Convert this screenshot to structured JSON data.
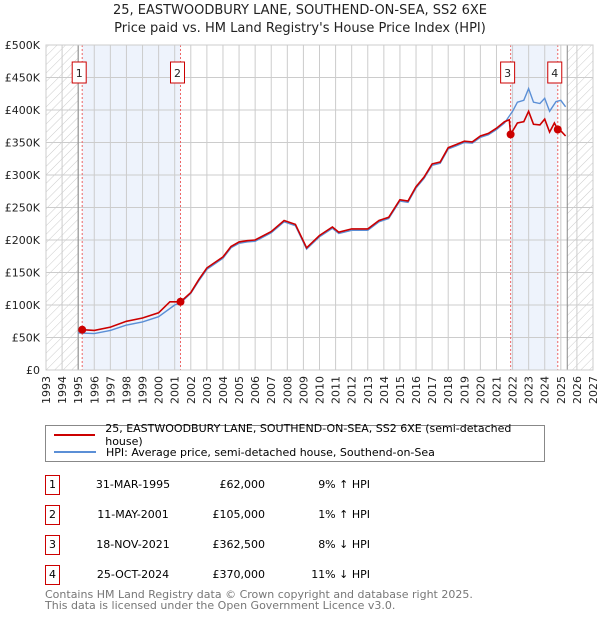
{
  "title_line1": "25, EASTWOODBURY LANE, SOUTHEND-ON-SEA, SS2 6XE",
  "title_line2": "Price paid vs. HM Land Registry's House Price Index (HPI)",
  "colors": {
    "property": "#cc0000",
    "hpi": "#5b8fd6",
    "band": "#eef3fc"
  },
  "chart_data": {
    "type": "line",
    "xlim": [
      1993,
      2027
    ],
    "ylim": [
      0,
      500000
    ],
    "x_ticks": [
      "1993",
      "1994",
      "1995",
      "1996",
      "1997",
      "1998",
      "1999",
      "2000",
      "2001",
      "2002",
      "2003",
      "2004",
      "2005",
      "2006",
      "2007",
      "2008",
      "2009",
      "2010",
      "2011",
      "2012",
      "2013",
      "2014",
      "2015",
      "2016",
      "2017",
      "2018",
      "2019",
      "2020",
      "2021",
      "2022",
      "2023",
      "2024",
      "2025",
      "2026",
      "2027"
    ],
    "y_ticks": [
      {
        "v": 0,
        "label": "£0"
      },
      {
        "v": 50000,
        "label": "£50K"
      },
      {
        "v": 100000,
        "label": "£100K"
      },
      {
        "v": 150000,
        "label": "£150K"
      },
      {
        "v": 200000,
        "label": "£200K"
      },
      {
        "v": 250000,
        "label": "£250K"
      },
      {
        "v": 300000,
        "label": "£300K"
      },
      {
        "v": 350000,
        "label": "£350K"
      },
      {
        "v": 400000,
        "label": "£400K"
      },
      {
        "v": 450000,
        "label": "£450K"
      },
      {
        "v": 500000,
        "label": "£500K"
      }
    ],
    "data_range": [
      1995.0,
      2025.4
    ],
    "series": [
      {
        "name": "25, EASTWOODBURY LANE, SOUTHEND-ON-SEA, SS2 6XE (semi-detached house)",
        "color": "#cc0000",
        "x": [
          1995.25,
          1996,
          1997,
          1998,
          1999,
          2000,
          2000.7,
          2001.36,
          2002,
          2002.5,
          2003,
          2004,
          2004.5,
          2005,
          2005.5,
          2006,
          2007,
          2007.8,
          2008.5,
          2009.2,
          2010,
          2010.8,
          2011.2,
          2012,
          2013,
          2013.7,
          2014.3,
          2015,
          2015.5,
          2016,
          2016.5,
          2017,
          2017.5,
          2018,
          2018.5,
          2019,
          2019.5,
          2020,
          2020.5,
          2021,
          2021.5,
          2021.8,
          2021.88,
          2022.3,
          2022.7,
          2023,
          2023.3,
          2023.7,
          2024,
          2024.3,
          2024.6,
          2024.81,
          2025,
          2025.3
        ],
        "y": [
          62000,
          61000,
          66000,
          75000,
          80000,
          88000,
          105000,
          105000,
          119000,
          139000,
          157000,
          174000,
          190000,
          197000,
          199000,
          200000,
          213000,
          230000,
          224000,
          188000,
          207000,
          220000,
          212000,
          217000,
          217000,
          230000,
          235000,
          262000,
          260000,
          282000,
          297000,
          317000,
          320000,
          342000,
          347000,
          352000,
          351000,
          360000,
          364000,
          372000,
          382000,
          385000,
          362500,
          380000,
          382000,
          398000,
          378000,
          377000,
          386000,
          366000,
          380000,
          370000,
          368000,
          360000
        ]
      },
      {
        "name": "HPI: Average price, semi-detached house, Southend-on-Sea",
        "color": "#5b8fd6",
        "x": [
          1995.0,
          1996,
          1997,
          1998,
          1999,
          2000,
          2001,
          2001.4,
          2002,
          2002.5,
          2003,
          2004,
          2004.5,
          2005,
          2005.5,
          2006,
          2007,
          2007.8,
          2008.5,
          2009.2,
          2010,
          2010.8,
          2011.2,
          2012,
          2013,
          2013.7,
          2014.3,
          2015,
          2015.5,
          2016,
          2016.5,
          2017,
          2017.5,
          2018,
          2018.5,
          2019,
          2019.5,
          2020,
          2020.5,
          2021,
          2021.5,
          2022,
          2022.3,
          2022.7,
          2023,
          2023.3,
          2023.7,
          2024,
          2024.3,
          2024.7,
          2025,
          2025.3
        ],
        "y": [
          57000,
          56000,
          61000,
          69000,
          74000,
          82000,
          100000,
          104000,
          118000,
          137000,
          155000,
          172000,
          188000,
          195000,
          197000,
          198000,
          211000,
          228000,
          222000,
          186000,
          205000,
          218000,
          210000,
          215000,
          215000,
          228000,
          233000,
          260000,
          258000,
          280000,
          295000,
          315000,
          318000,
          340000,
          345000,
          350000,
          349000,
          358000,
          362000,
          370000,
          380000,
          398000,
          412000,
          415000,
          433000,
          412000,
          410000,
          418000,
          398000,
          413000,
          415000,
          405000
        ]
      }
    ],
    "sales": [
      {
        "n": "1",
        "x": 1995.25,
        "y": 62000
      },
      {
        "n": "2",
        "x": 2001.36,
        "y": 105000
      },
      {
        "n": "3",
        "x": 2021.88,
        "y": 362500
      },
      {
        "n": "4",
        "x": 2024.81,
        "y": 370000
      }
    ]
  },
  "legend": {
    "property": "25, EASTWOODBURY LANE, SOUTHEND-ON-SEA, SS2 6XE (semi-detached house)",
    "hpi": "HPI: Average price, semi-detached house, Southend-on-Sea"
  },
  "transactions": [
    {
      "n": "1",
      "date": "31-MAR-1995",
      "price": "£62,000",
      "hpi": "9% ↑ HPI"
    },
    {
      "n": "2",
      "date": "11-MAY-2001",
      "price": "£105,000",
      "hpi": "1% ↑ HPI"
    },
    {
      "n": "3",
      "date": "18-NOV-2021",
      "price": "£362,500",
      "hpi": "8% ↓ HPI"
    },
    {
      "n": "4",
      "date": "25-OCT-2024",
      "price": "£370,000",
      "hpi": "11% ↓ HPI"
    }
  ],
  "footer_line1": "Contains HM Land Registry data © Crown copyright and database right 2025.",
  "footer_line2": "This data is licensed under the Open Government Licence v3.0."
}
